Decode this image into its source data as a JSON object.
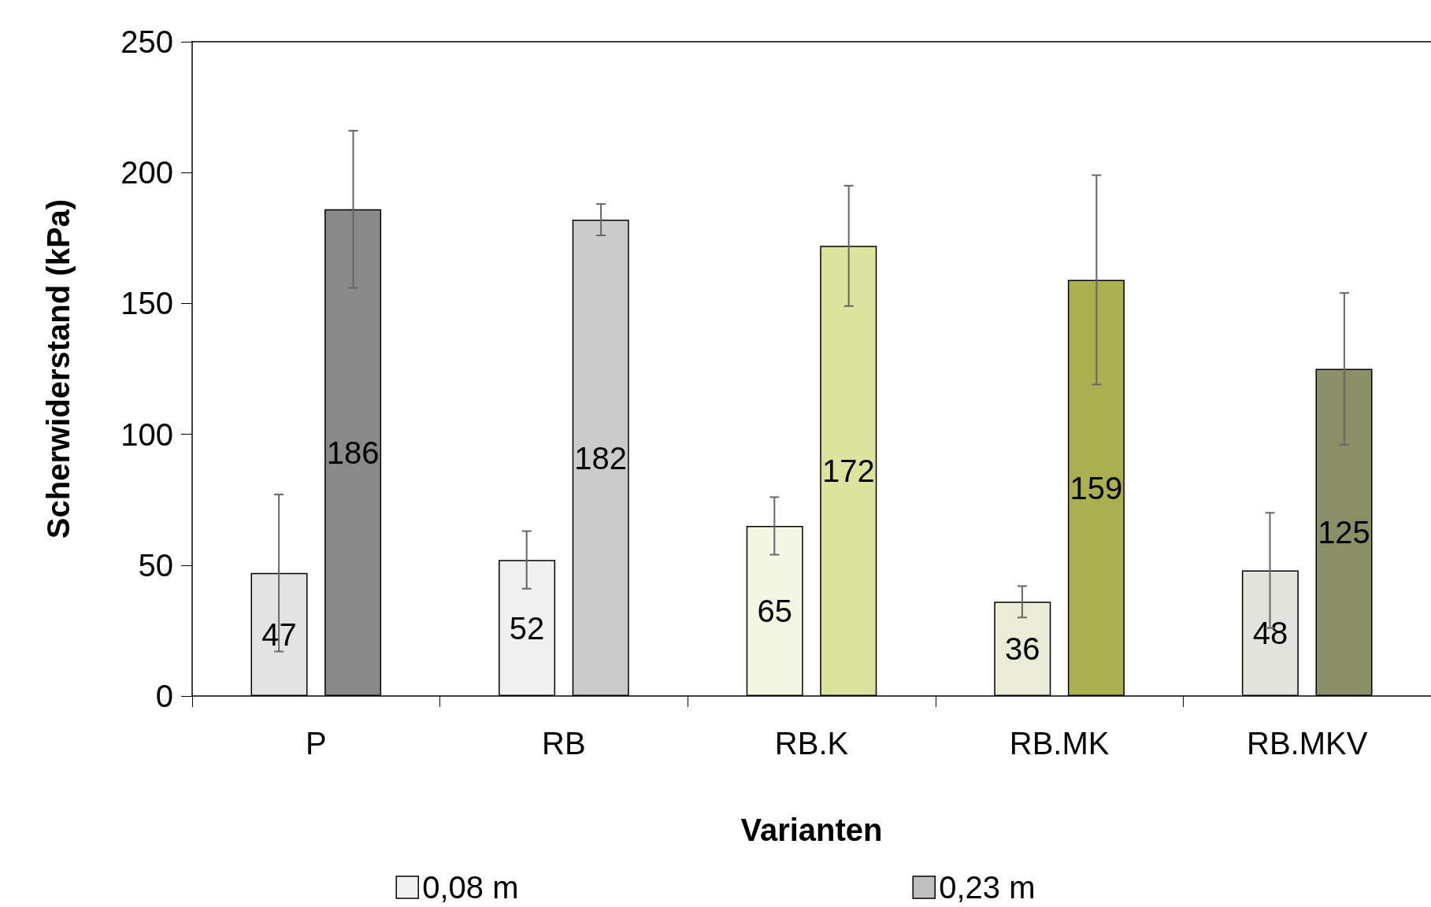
{
  "chart_data": {
    "type": "bar",
    "xlabel": "Varianten",
    "ylabel": "Scherwiderstand (kPa)",
    "categories": [
      "P",
      "RB",
      "RB.K",
      "RB.MK",
      "RB.MKV"
    ],
    "series": [
      {
        "name": "0,08 m",
        "color": "#f0f0f0",
        "colors": [
          "#e3e3e3",
          "#f0f0f0",
          "#f4f7e4",
          "#eaecd8",
          "#e2e3dc"
        ],
        "values": [
          47,
          52,
          65,
          36,
          48
        ],
        "errors": [
          30,
          11,
          11,
          6,
          22
        ]
      },
      {
        "name": "0,23 m",
        "color": "#c0c0c0",
        "colors": [
          "#898989",
          "#cbcbcb",
          "#dce39c",
          "#abaf50",
          "#8b8f68"
        ],
        "values": [
          186,
          182,
          172,
          159,
          125
        ],
        "errors": [
          30,
          6,
          23,
          40,
          29
        ]
      }
    ],
    "ylim": [
      0,
      250
    ],
    "yticks": [
      0,
      50,
      100,
      150,
      200,
      250
    ],
    "data_labels": true,
    "grid": false,
    "legend": "bottom"
  }
}
